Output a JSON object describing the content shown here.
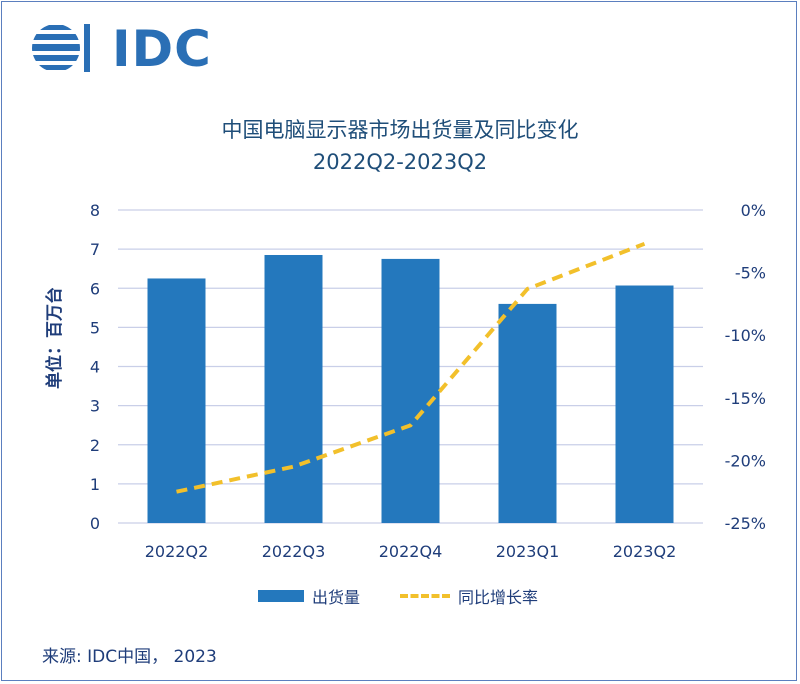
{
  "logo": {
    "text": "IDC"
  },
  "title": {
    "line1": "中国电脑显示器市场出货量及同比变化",
    "line2": "2022Q2-2023Q2"
  },
  "source": "来源: IDC中国， 2023",
  "colors": {
    "bar": "#2478bd",
    "line": "#f2c02b",
    "grid": "#c9cfe8",
    "text": "#1f3d7a"
  },
  "chart_data": {
    "type": "bar",
    "categories": [
      "2022Q2",
      "2022Q3",
      "2022Q4",
      "2023Q1",
      "2023Q2"
    ],
    "ylabel": "单位：百万台",
    "ylim": [
      0,
      8
    ],
    "yticks": [
      "0",
      "1",
      "2",
      "3",
      "4",
      "5",
      "6",
      "7",
      "8"
    ],
    "y2lim": [
      -25,
      0
    ],
    "y2ticks": [
      "-25%",
      "-20%",
      "-15%",
      "-10%",
      "-5%",
      "0%"
    ],
    "series": [
      {
        "name": "出货量",
        "kind": "bar",
        "axis": "left",
        "values": [
          6.25,
          6.85,
          6.75,
          5.6,
          6.07
        ]
      },
      {
        "name": "同比增长率",
        "kind": "line-dashed",
        "axis": "right",
        "values": [
          -22.5,
          -20.5,
          -17.2,
          -6.3,
          -2.7
        ]
      }
    ],
    "legend_position": "bottom",
    "grid": true
  }
}
